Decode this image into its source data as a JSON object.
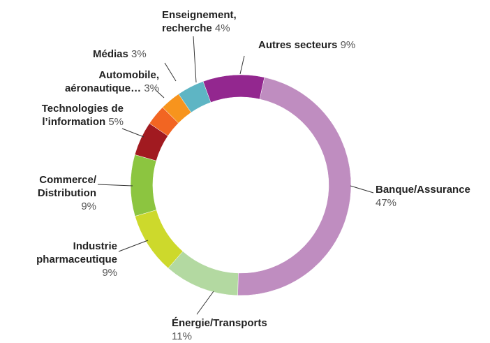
{
  "chart_data": {
    "type": "donut",
    "categories": [
      "Banque/Assurance",
      "Énergie/Transports",
      "Industrie pharmaceutique",
      "Commerce/ Distribution",
      "Technologies de l’information",
      "Automobile, aéronautique…",
      "Médias",
      "Enseignement, recherche",
      "Autres secteurs"
    ],
    "values": [
      47,
      11,
      9,
      9,
      5,
      3,
      3,
      4,
      9
    ],
    "value_labels": [
      "47%",
      "11%",
      "9%",
      "9%",
      "5%",
      "3%",
      "3%",
      "4%",
      "9%"
    ],
    "colors": [
      "#bf8dc0",
      "#b3d9a1",
      "#cdd92c",
      "#8cc540",
      "#a11a20",
      "#f26522",
      "#f7941d",
      "#5eb5c4",
      "#93278f"
    ]
  }
}
